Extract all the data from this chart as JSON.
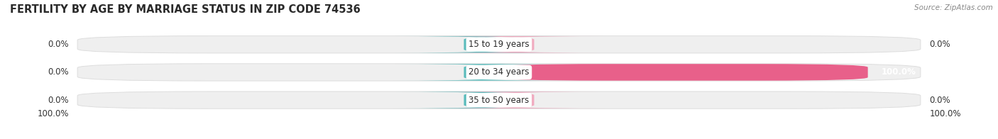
{
  "title": "FERTILITY BY AGE BY MARRIAGE STATUS IN ZIP CODE 74536",
  "source": "Source: ZipAtlas.com",
  "categories": [
    "15 to 19 years",
    "20 to 34 years",
    "35 to 50 years"
  ],
  "married_values": [
    0.0,
    0.0,
    0.0
  ],
  "unmarried_values": [
    0.0,
    100.0,
    0.0
  ],
  "left_labels": [
    "0.0%",
    "0.0%",
    "0.0%"
  ],
  "right_labels": [
    "0.0%",
    "100.0%",
    "0.0%"
  ],
  "bottom_left_label": "100.0%",
  "bottom_right_label": "100.0%",
  "married_color": "#5bbcbc",
  "unmarried_color_full": "#e8608a",
  "unmarried_color_stub": "#f0aabf",
  "bar_bg_color": "#efefef",
  "bar_border_color": "#dddddd",
  "title_fontsize": 10.5,
  "label_fontsize": 8.5,
  "source_fontsize": 7.5,
  "background_color": "#ffffff"
}
